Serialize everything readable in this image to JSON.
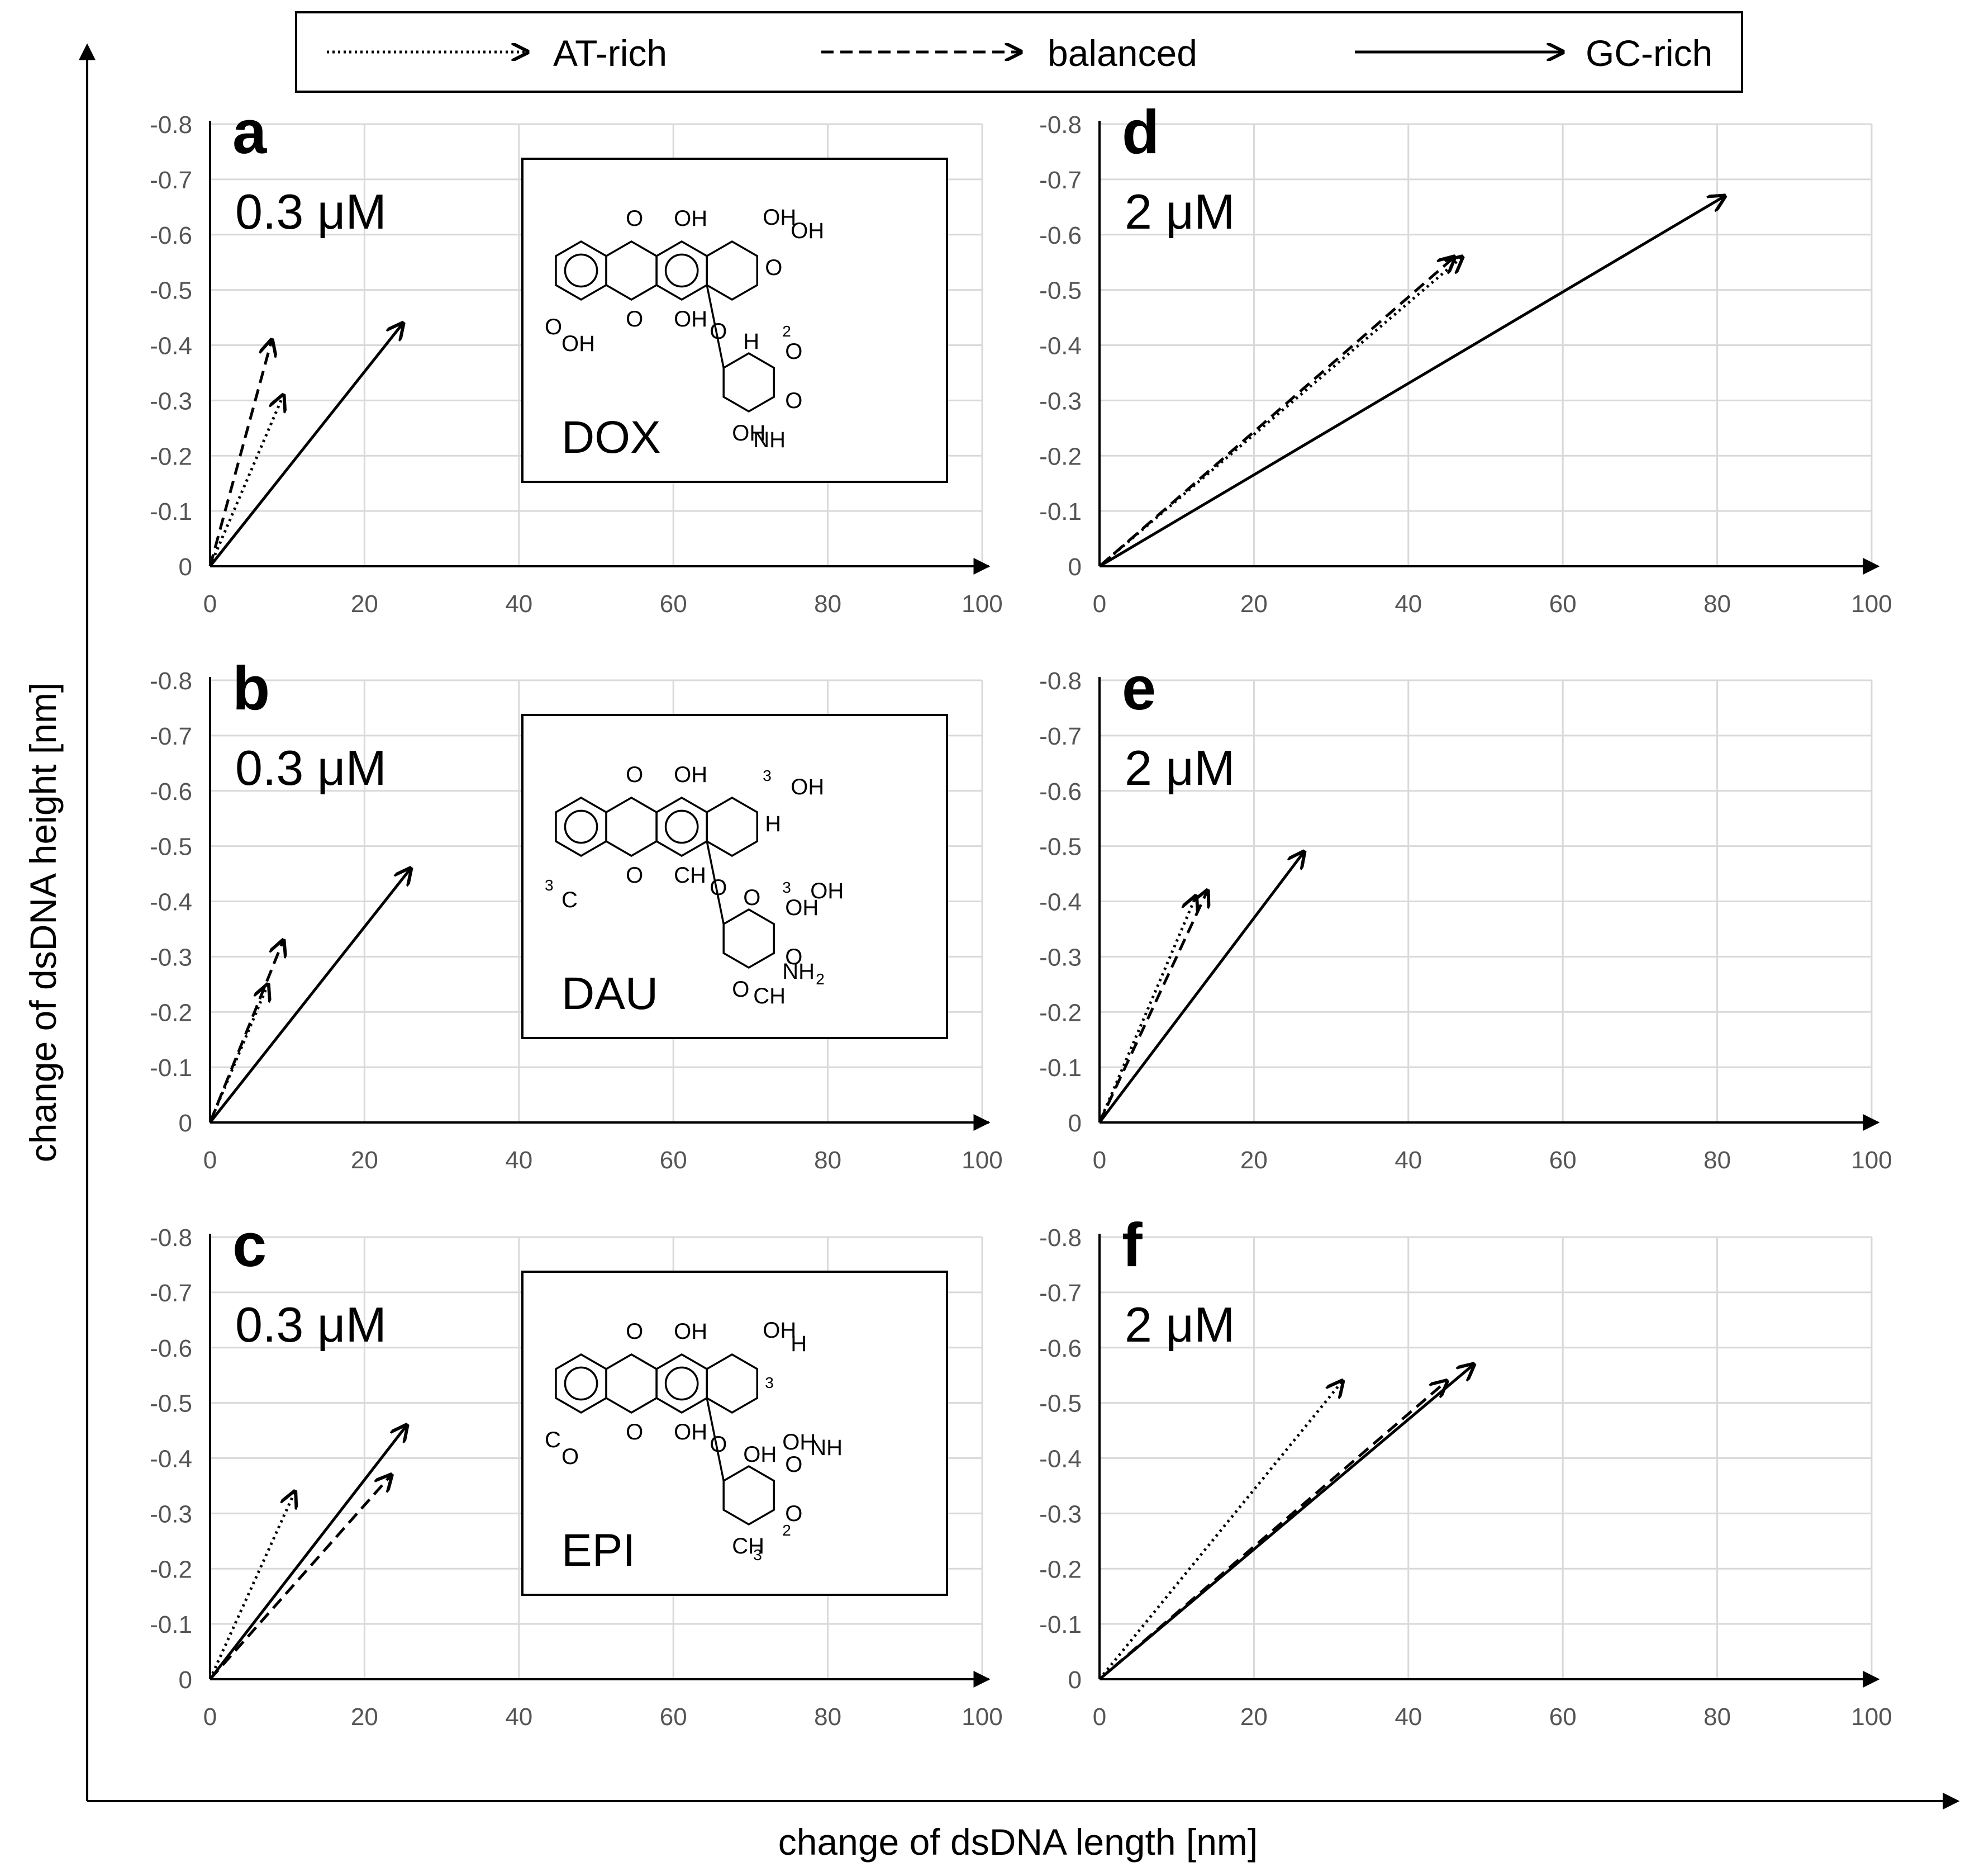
{
  "figure": {
    "x_axis_title": "change of dsDNA length [nm]",
    "y_axis_title": "change of dsDNA height [nm]"
  },
  "legend": [
    {
      "label": "AT-rich",
      "style": "dotted"
    },
    {
      "label": "balanced",
      "style": "dashed"
    },
    {
      "label": "GC-rich",
      "style": "solid"
    }
  ],
  "styles": {
    "AT-rich": "dotted",
    "balanced": "dashed",
    "GC-rich": "solid"
  },
  "colors": {
    "ink": "#000000",
    "grid": "#d9d9d9",
    "tick_text": "#555555"
  },
  "chart_data": [
    {
      "type": "vector",
      "panel": "a",
      "concentration": "0.3 μM",
      "drug": "DOX",
      "xlim": [
        0,
        100
      ],
      "ylim": [
        0,
        -0.8
      ],
      "y_axis_inverted": true,
      "x_ticks": [
        "0",
        "20",
        "40",
        "60",
        "80",
        "100"
      ],
      "y_ticks": [
        "0",
        "-0.1",
        "-0.2",
        "-0.3",
        "-0.4",
        "-0.5",
        "-0.6",
        "-0.7",
        "-0.8"
      ],
      "grid": true,
      "series": [
        {
          "name": "AT-rich",
          "x": [
            0,
            9.5
          ],
          "y": [
            0,
            -0.31
          ]
        },
        {
          "name": "balanced",
          "x": [
            0,
            8
          ],
          "y": [
            0,
            -0.41
          ]
        },
        {
          "name": "GC-rich",
          "x": [
            0,
            25
          ],
          "y": [
            0,
            -0.44
          ]
        }
      ],
      "structure": {
        "labels": [
          "O",
          "OH",
          "O",
          "OH",
          "OH",
          "OH",
          "O",
          "O",
          "OH",
          "O",
          "H",
          "O",
          "O",
          "OH",
          "NH",
          "2"
        ]
      }
    },
    {
      "type": "vector",
      "panel": "b",
      "concentration": "0.3 μM",
      "drug": "DAU",
      "xlim": [
        0,
        100
      ],
      "ylim": [
        0,
        -0.8
      ],
      "y_axis_inverted": true,
      "x_ticks": [
        "0",
        "20",
        "40",
        "60",
        "80",
        "100"
      ],
      "y_ticks": [
        "0",
        "-0.1",
        "-0.2",
        "-0.3",
        "-0.4",
        "-0.5",
        "-0.6",
        "-0.7",
        "-0.8"
      ],
      "grid": true,
      "series": [
        {
          "name": "AT-rich",
          "x": [
            0,
            7.5
          ],
          "y": [
            0,
            -0.25
          ]
        },
        {
          "name": "balanced",
          "x": [
            0,
            9.5
          ],
          "y": [
            0,
            -0.33
          ]
        },
        {
          "name": "GC-rich",
          "x": [
            0,
            26
          ],
          "y": [
            0,
            -0.46
          ]
        }
      ],
      "structure": {
        "labels": [
          "O",
          "OH",
          "O",
          "CH",
          "3",
          "OH",
          "H",
          "3",
          "C",
          "O",
          "O",
          "OH",
          "O",
          "O",
          "CH",
          "3",
          "OH",
          "NH",
          "2"
        ]
      }
    },
    {
      "type": "vector",
      "panel": "c",
      "concentration": "0.3 μM",
      "drug": "EPI",
      "xlim": [
        0,
        100
      ],
      "ylim": [
        0,
        -0.8
      ],
      "y_axis_inverted": true,
      "x_ticks": [
        "0",
        "20",
        "40",
        "60",
        "80",
        "100"
      ],
      "y_ticks": [
        "0",
        "-0.1",
        "-0.2",
        "-0.3",
        "-0.4",
        "-0.5",
        "-0.6",
        "-0.7",
        "-0.8"
      ],
      "grid": true,
      "series": [
        {
          "name": "AT-rich",
          "x": [
            0,
            11
          ],
          "y": [
            0,
            -0.34
          ]
        },
        {
          "name": "balanced",
          "x": [
            0,
            23.5
          ],
          "y": [
            0,
            -0.37
          ]
        },
        {
          "name": "GC-rich",
          "x": [
            0,
            25.5
          ],
          "y": [
            0,
            -0.46
          ]
        }
      ],
      "structure": {
        "labels": [
          "O",
          "OH",
          "O",
          "OH",
          "OH",
          "H",
          "3",
          "C",
          "O",
          "O",
          "OH",
          "O",
          "O",
          "CH",
          "3",
          "OH",
          "NH",
          "2"
        ]
      }
    },
    {
      "type": "vector",
      "panel": "d",
      "concentration": "2 μM",
      "xlim": [
        0,
        100
      ],
      "ylim": [
        0,
        -0.8
      ],
      "y_axis_inverted": true,
      "x_ticks": [
        "0",
        "20",
        "40",
        "60",
        "80",
        "100"
      ],
      "y_ticks": [
        "0",
        "-0.1",
        "-0.2",
        "-0.3",
        "-0.4",
        "-0.5",
        "-0.6",
        "-0.7",
        "-0.8"
      ],
      "grid": true,
      "series": [
        {
          "name": "AT-rich",
          "x": [
            0,
            47
          ],
          "y": [
            0,
            -0.56
          ]
        },
        {
          "name": "balanced",
          "x": [
            0,
            46
          ],
          "y": [
            0,
            -0.56
          ]
        },
        {
          "name": "GC-rich",
          "x": [
            0,
            81
          ],
          "y": [
            0,
            -0.67
          ]
        }
      ]
    },
    {
      "type": "vector",
      "panel": "e",
      "concentration": "2 μM",
      "xlim": [
        0,
        100
      ],
      "ylim": [
        0,
        -0.8
      ],
      "y_axis_inverted": true,
      "x_ticks": [
        "0",
        "20",
        "40",
        "60",
        "80",
        "100"
      ],
      "y_ticks": [
        "0",
        "-0.1",
        "-0.2",
        "-0.3",
        "-0.4",
        "-0.5",
        "-0.6",
        "-0.7",
        "-0.8"
      ],
      "grid": true,
      "series": [
        {
          "name": "AT-rich",
          "x": [
            0,
            12.5
          ],
          "y": [
            0,
            -0.41
          ]
        },
        {
          "name": "balanced",
          "x": [
            0,
            14
          ],
          "y": [
            0,
            -0.42
          ]
        },
        {
          "name": "GC-rich",
          "x": [
            0,
            26.5
          ],
          "y": [
            0,
            -0.49
          ]
        }
      ]
    },
    {
      "type": "vector",
      "panel": "f",
      "concentration": "2 μM",
      "xlim": [
        0,
        100
      ],
      "ylim": [
        0,
        -0.8
      ],
      "y_axis_inverted": true,
      "x_ticks": [
        "0",
        "20",
        "40",
        "60",
        "80",
        "100"
      ],
      "y_ticks": [
        "0",
        "-0.1",
        "-0.2",
        "-0.3",
        "-0.4",
        "-0.5",
        "-0.6",
        "-0.7",
        "-0.8"
      ],
      "grid": true,
      "series": [
        {
          "name": "AT-rich",
          "x": [
            0,
            31.5
          ],
          "y": [
            0,
            -0.54
          ]
        },
        {
          "name": "balanced",
          "x": [
            0,
            45
          ],
          "y": [
            0,
            -0.54
          ]
        },
        {
          "name": "GC-rich",
          "x": [
            0,
            48.5
          ],
          "y": [
            0,
            -0.57
          ]
        }
      ]
    }
  ]
}
